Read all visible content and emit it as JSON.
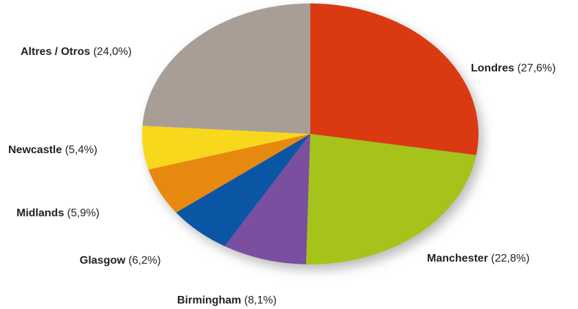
{
  "chart_data": {
    "type": "pie",
    "categories": [
      "Londres",
      "Manchester",
      "Birmingham",
      "Glasgow",
      "Midlands",
      "Newcastle",
      "Altres / Otros"
    ],
    "values": [
      27.6,
      22.8,
      8.1,
      6.2,
      5.9,
      5.4,
      24.0
    ],
    "value_labels": [
      "(27,6%)",
      "(22,8%)",
      "(8,1%)",
      "(6,2%)",
      "(5,9%)",
      "(5,4%)",
      "(24,0%)"
    ],
    "colors": [
      "#d93a12",
      "#a5c31a",
      "#7b4fa0",
      "#0a56a5",
      "#e8890f",
      "#f7d81c",
      "#a89e96"
    ]
  }
}
